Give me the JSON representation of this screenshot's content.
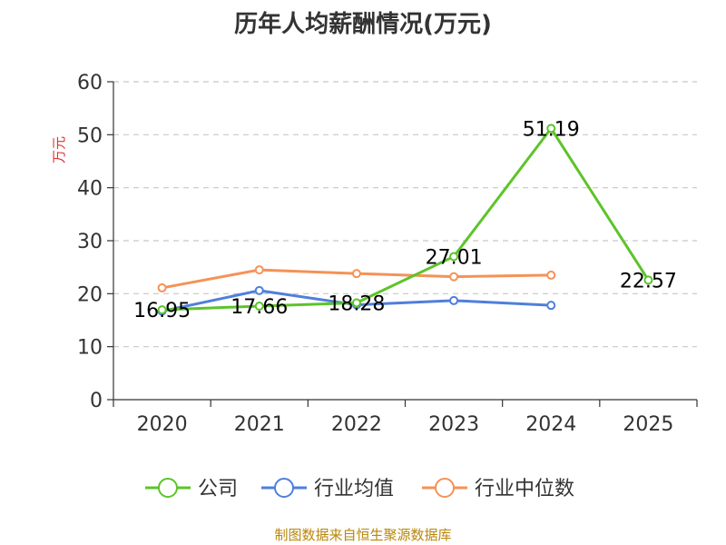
{
  "chart_data": {
    "type": "line",
    "title": "历年人均薪酬情况(万元)",
    "ylabel": "万元",
    "xlabel": "",
    "categories": [
      "2020",
      "2021",
      "2022",
      "2023",
      "2024",
      "2025"
    ],
    "ylim": [
      0,
      60
    ],
    "yticks": [
      0,
      10,
      20,
      30,
      40,
      50,
      60
    ],
    "grid": true,
    "legend_position": "bottom",
    "series": [
      {
        "name": "公司",
        "color": "#5cc42a",
        "values": [
          16.95,
          17.66,
          18.28,
          27.01,
          51.19,
          22.57
        ],
        "labels": [
          "16.95",
          "17.66",
          "18.28",
          "27.01",
          "51.19",
          "22.57"
        ]
      },
      {
        "name": "行业均值",
        "color": "#4f7fdb",
        "values": [
          16.7,
          20.6,
          17.9,
          18.7,
          17.8,
          null
        ]
      },
      {
        "name": "行业中位数",
        "color": "#f59256",
        "values": [
          21.1,
          24.5,
          23.8,
          23.2,
          23.5,
          null
        ]
      }
    ]
  },
  "source": "制图数据来自恒生聚源数据库"
}
